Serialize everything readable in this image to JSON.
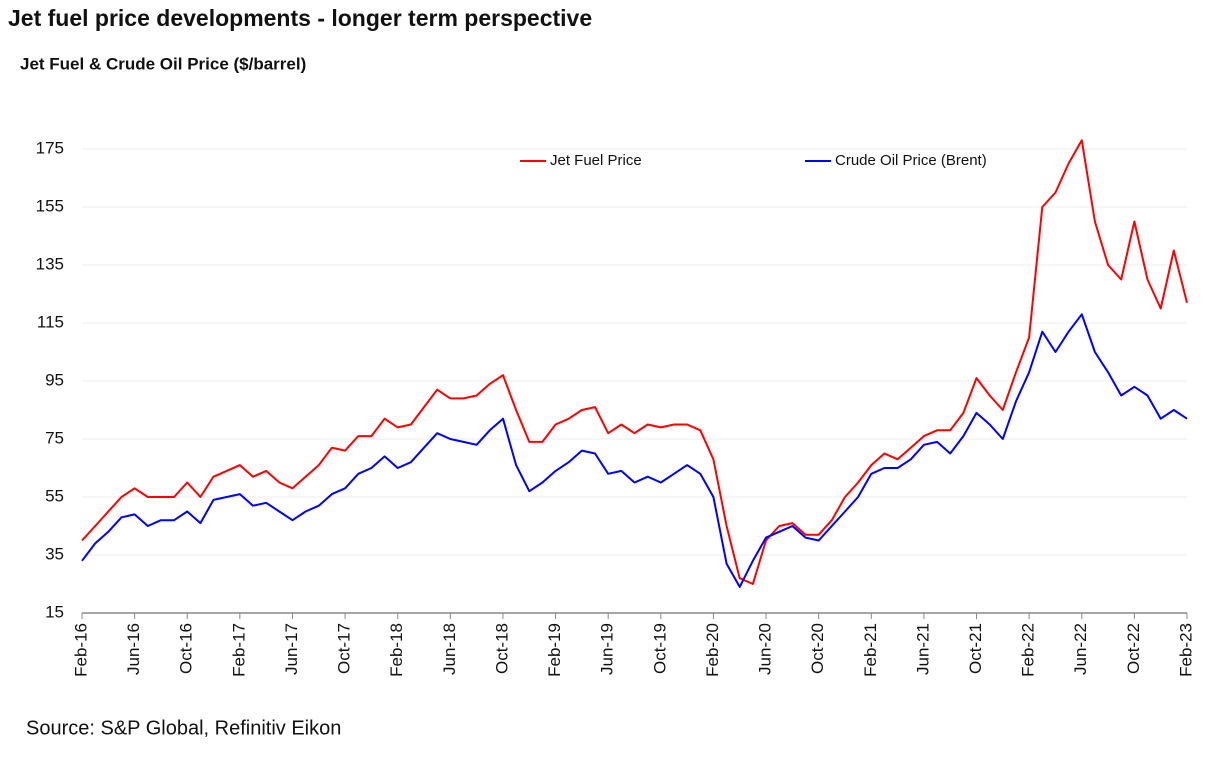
{
  "chart_data": {
    "type": "line",
    "title": "Jet fuel price developments - longer term perspective",
    "subtitle": "Jet Fuel & Crude Oil Price ($/barrel)",
    "source": "Source: S&P Global, Refinitiv Eikon",
    "categories": [
      "Feb-16",
      null,
      null,
      null,
      "Jun-16",
      null,
      null,
      null,
      "Oct-16",
      null,
      null,
      null,
      "Feb-17",
      null,
      null,
      null,
      "Jun-17",
      null,
      null,
      null,
      "Oct-17",
      null,
      null,
      null,
      "Feb-18",
      null,
      null,
      null,
      "Jun-18",
      null,
      null,
      null,
      "Oct-18",
      null,
      null,
      null,
      "Feb-19",
      null,
      null,
      null,
      "Jun-19",
      null,
      null,
      null,
      "Oct-19",
      null,
      null,
      null,
      "Feb-20",
      null,
      null,
      null,
      "Jun-20",
      null,
      null,
      null,
      "Oct-20",
      null,
      null,
      null,
      "Feb-21",
      null,
      null,
      null,
      "Jun-21",
      null,
      null,
      null,
      "Oct-21",
      null,
      null,
      null,
      "Feb-22",
      null,
      null,
      null,
      "Jun-22",
      null,
      null,
      null,
      "Oct-22",
      null,
      null,
      null,
      "Feb-23"
    ],
    "series": [
      {
        "name": "Jet Fuel Price",
        "color": "#ff0000",
        "values": [
          40,
          45,
          50,
          55,
          58,
          55,
          55,
          55,
          60,
          55,
          62,
          64,
          66,
          62,
          64,
          60,
          58,
          62,
          66,
          72,
          71,
          76,
          76,
          82,
          79,
          80,
          86,
          92,
          89,
          89,
          90,
          94,
          97,
          85,
          74,
          74,
          80,
          82,
          85,
          86,
          77,
          80,
          77,
          80,
          79,
          80,
          80,
          78,
          68,
          45,
          27,
          25,
          40,
          45,
          46,
          42,
          42,
          47,
          55,
          60,
          66,
          70,
          68,
          72,
          76,
          78,
          78,
          84,
          96,
          90,
          85,
          98,
          110,
          155,
          160,
          170,
          178,
          150,
          135,
          130,
          150,
          130,
          120,
          140,
          122
        ]
      },
      {
        "name": "Crude Oil Price (Brent)",
        "color": "#0000ff",
        "values": [
          33,
          39,
          43,
          48,
          49,
          45,
          47,
          47,
          50,
          46,
          54,
          55,
          56,
          52,
          53,
          50,
          47,
          50,
          52,
          56,
          58,
          63,
          65,
          69,
          65,
          67,
          72,
          77,
          75,
          74,
          73,
          78,
          82,
          66,
          57,
          60,
          64,
          67,
          71,
          70,
          63,
          64,
          60,
          62,
          60,
          63,
          66,
          63,
          55,
          32,
          24,
          33,
          41,
          43,
          45,
          41,
          40,
          45,
          50,
          55,
          63,
          65,
          65,
          68,
          73,
          74,
          70,
          76,
          84,
          80,
          75,
          88,
          98,
          112,
          105,
          112,
          118,
          105,
          98,
          90,
          93,
          90,
          82,
          85,
          82
        ]
      }
    ],
    "ylim": [
      15,
      185
    ],
    "yticks": [
      15,
      35,
      55,
      75,
      95,
      115,
      135,
      155,
      175
    ],
    "grid": true
  }
}
